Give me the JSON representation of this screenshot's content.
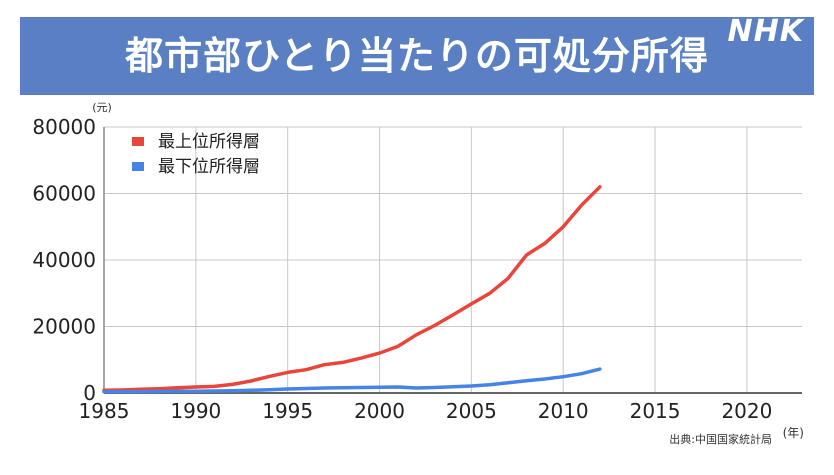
{
  "header": {
    "title": "都市部ひとり当たりの可処分所得",
    "logo": "NHK",
    "background": "#5a80c3"
  },
  "chart_data": {
    "type": "line",
    "y_unit": "(元)",
    "x_unit": "(年)",
    "source": "出典:中国国家統計局",
    "xlim": [
      1985,
      2023
    ],
    "ylim": [
      0,
      80000
    ],
    "x_ticks": [
      1985,
      1990,
      1995,
      2000,
      2005,
      2010,
      2015,
      2020
    ],
    "y_ticks": [
      0,
      20000,
      40000,
      60000,
      80000
    ],
    "grid": true,
    "legend_position": "top-left",
    "series": [
      {
        "name": "最上位所得層",
        "color": "#e8463a",
        "x": [
          1985,
          1986,
          1987,
          1988,
          1989,
          1990,
          1991,
          1992,
          1993,
          1994,
          1995,
          1996,
          1997,
          1998,
          1999,
          2000,
          2001,
          2002,
          2003,
          2004,
          2005,
          2006,
          2007,
          2008,
          2009,
          2010,
          2011,
          2012
        ],
        "y": [
          800,
          900,
          1100,
          1300,
          1600,
          1800,
          2000,
          2600,
          3600,
          5000,
          6200,
          7000,
          8500,
          9200,
          10500,
          12000,
          14000,
          17500,
          20300,
          23500,
          26800,
          30000,
          34500,
          41500,
          45000,
          50000,
          56500,
          62000
        ]
      },
      {
        "name": "最下位所得層",
        "color": "#4583e6",
        "x": [
          1985,
          1986,
          1987,
          1988,
          1989,
          1990,
          1991,
          1992,
          1993,
          1994,
          1995,
          1996,
          1997,
          1998,
          1999,
          2000,
          2001,
          2002,
          2003,
          2004,
          2005,
          2006,
          2007,
          2008,
          2009,
          2010,
          2011,
          2012
        ],
        "y": [
          350,
          380,
          400,
          450,
          500,
          550,
          600,
          700,
          800,
          1000,
          1200,
          1350,
          1500,
          1550,
          1650,
          1700,
          1800,
          1500,
          1650,
          1850,
          2100,
          2500,
          3100,
          3700,
          4200,
          4900,
          5800,
          7200
        ]
      }
    ]
  }
}
